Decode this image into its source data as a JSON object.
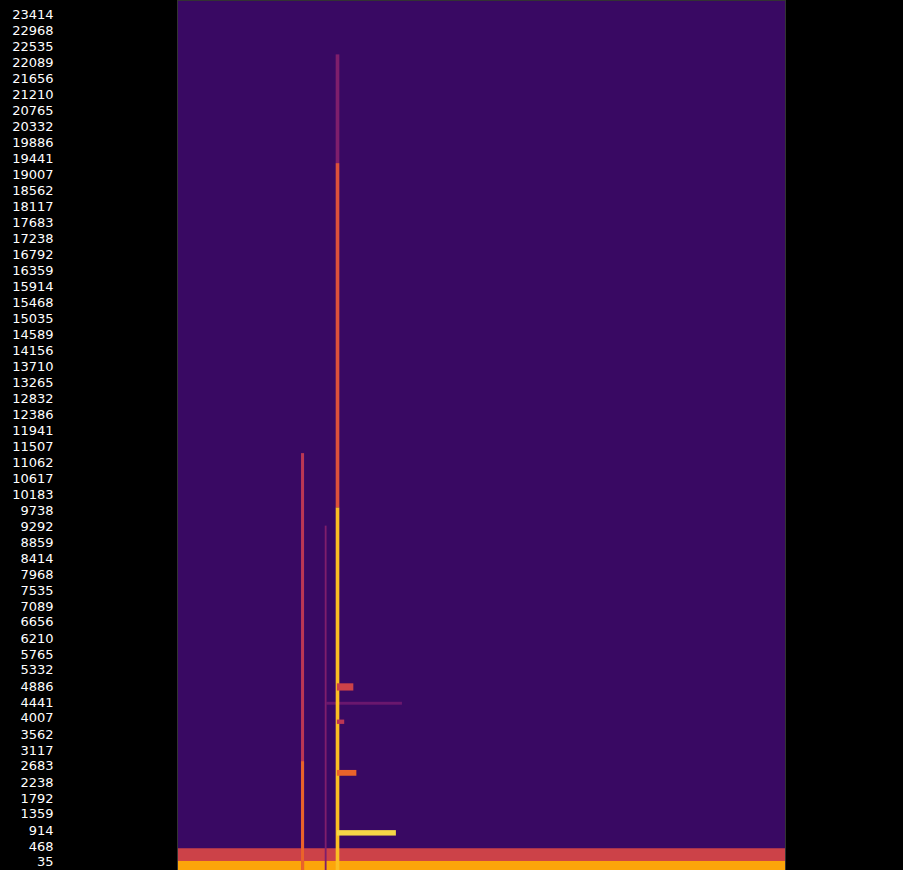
{
  "chart_data": {
    "type": "heatmap",
    "color": "inferno",
    "color_range": [
      0,
      1
    ],
    "xlim": [
      0,
      1
    ],
    "ylim": [
      0,
      24000
    ],
    "tick_labels": "y",
    "yticks": [
      35,
      468,
      914,
      1359,
      1792,
      2238,
      2683,
      3117,
      3562,
      4007,
      4441,
      4886,
      5332,
      5765,
      6210,
      6656,
      7089,
      7535,
      7968,
      8414,
      8859,
      9292,
      9738,
      10183,
      10617,
      11062,
      11507,
      11941,
      12386,
      12832,
      13265,
      13710,
      14156,
      14589,
      15035,
      15468,
      15914,
      16359,
      16792,
      17238,
      17683,
      18117,
      18562,
      19007,
      19441,
      19886,
      20332,
      20765,
      21210,
      21656,
      22089,
      22535,
      22968,
      23414
    ],
    "cells": [
      {
        "x1": 0,
        "x2": 1,
        "y1": 0,
        "y2": 24000,
        "value": 0.18
      },
      {
        "x1": 0,
        "x2": 1,
        "y1": 0,
        "y2": 600,
        "value": 0.55
      },
      {
        "x1": 0,
        "x2": 1,
        "y1": 0,
        "y2": 250,
        "value": 0.8
      },
      {
        "x1": 0.204,
        "x2": 0.209,
        "y1": 0,
        "y2": 11500,
        "value": 0.5
      },
      {
        "x1": 0.204,
        "x2": 0.209,
        "y1": 0,
        "y2": 3000,
        "value": 0.65
      },
      {
        "x1": 0.243,
        "x2": 0.246,
        "y1": 0,
        "y2": 9500,
        "value": 0.35
      },
      {
        "x1": 0.245,
        "x2": 0.37,
        "y1": 4560,
        "y2": 4640,
        "value": 0.3
      },
      {
        "x1": 0.261,
        "x2": 0.267,
        "y1": 19500,
        "y2": 22500,
        "value": 0.35
      },
      {
        "x1": 0.261,
        "x2": 0.267,
        "y1": 10000,
        "y2": 19500,
        "value": 0.6
      },
      {
        "x1": 0.261,
        "x2": 0.267,
        "y1": 0,
        "y2": 10000,
        "value": 0.85
      },
      {
        "x1": 0.263,
        "x2": 0.295,
        "y1": 2600,
        "y2": 2760,
        "value": 0.65
      },
      {
        "x1": 0.263,
        "x2": 0.29,
        "y1": 4950,
        "y2": 5150,
        "value": 0.55
      },
      {
        "x1": 0.263,
        "x2": 0.275,
        "y1": 4030,
        "y2": 4150,
        "value": 0.5
      },
      {
        "x1": 0.263,
        "x2": 0.36,
        "y1": 950,
        "y2": 1100,
        "value": 0.9
      }
    ]
  }
}
